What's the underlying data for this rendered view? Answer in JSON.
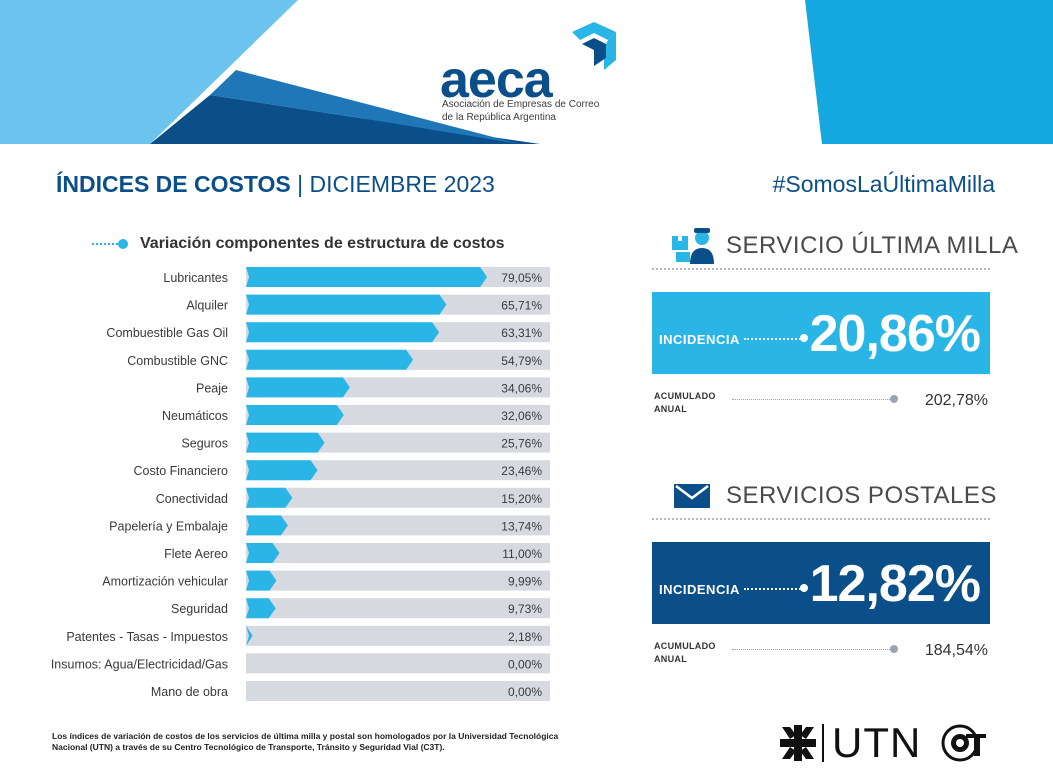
{
  "brand": {
    "name": "aeca",
    "subtitle_line1": "Asociación de Empresas de Correo",
    "subtitle_line2": "de la República Argentina"
  },
  "header": {
    "title_bold": "ÍNDICES DE COSTOS",
    "title_sep": "|",
    "title_period": "DICIEMBRE 2023",
    "hashtag": "#SomosLaÚltimaMilla"
  },
  "colors": {
    "navy": "#0b4f8a",
    "cyan": "#29b6e6",
    "bar_track": "#d7d9e1",
    "postal_box": "#0b4f8a",
    "ultima_box": "#29b6e6"
  },
  "chart_data": {
    "type": "bar",
    "orientation": "horizontal",
    "title": "Variación componentes de estructura de costos",
    "categories": [
      "Lubricantes",
      "Alquiler",
      "Combuestible Gas Oil",
      "Combustible GNC",
      "Peaje",
      "Neumáticos",
      "Seguros",
      "Costo Financiero",
      "Conectividad",
      "Papelería y Embalaje",
      "Flete Aereo",
      "Amortización vehicular",
      "Seguridad",
      "Patentes - Tasas - Impuestos",
      "Insumos: Agua/Electricidad/Gas",
      "Mano de obra"
    ],
    "values": [
      79.05,
      65.71,
      63.31,
      54.79,
      34.06,
      32.06,
      25.76,
      23.46,
      15.2,
      13.74,
      11.0,
      9.99,
      9.73,
      2.18,
      0.0,
      0.0
    ],
    "value_labels": [
      "79,05%",
      "65,71%",
      "63,31%",
      "54,79%",
      "34,06%",
      "32,06%",
      "25,76%",
      "23,46%",
      "15,20%",
      "13,74%",
      "11,00%",
      "9,99%",
      "9,73%",
      "2,18%",
      "0,00%",
      "0,00%"
    ],
    "xlim": [
      0,
      80
    ],
    "grid": false,
    "legend": "none"
  },
  "services": [
    {
      "icon": "delivery-person-icon",
      "title": "SERVICIO ÚLTIMA MILLA",
      "incidence_label": "INCIDENCIA",
      "incidence_value": "20,86%",
      "accum_label_line1": "ACUMULADO",
      "accum_label_line2": "ANUAL",
      "accum_value": "202,78%"
    },
    {
      "icon": "envelope-icon",
      "title": "SERVICIOS POSTALES",
      "incidence_label": "INCIDENCIA",
      "incidence_value": "12,82%",
      "accum_label_line1": "ACUMULADO",
      "accum_label_line2": "ANUAL",
      "accum_value": "184,54%"
    }
  ],
  "footnote": "Los índices de variación de costos de los servicios de última milla y postal son homologados por la Universidad Tecnológica Nacional (UTN) a través de su Centro Tecnológico de Transporte, Tránsito y Seguridad Vial (C3T).",
  "footer_logos": {
    "utn": "UTN",
    "c3t_icon": "c3t-logo-icon"
  }
}
